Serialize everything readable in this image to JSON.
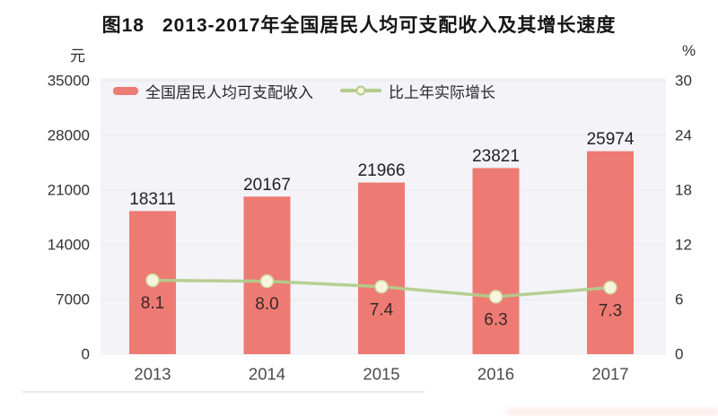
{
  "figure": {
    "title_prefix": "图18",
    "title": "2013-2017年全国居民人均可支配收入及其增长速度"
  },
  "chart_data": {
    "type": "bar",
    "subtype": "bar-line-combo",
    "categories": [
      "2013",
      "2014",
      "2015",
      "2016",
      "2017"
    ],
    "series": [
      {
        "name": "全国居民人均可支配收入",
        "type": "bar",
        "axis": "left",
        "values": [
          18311,
          20167,
          21966,
          23821,
          25974
        ],
        "value_labels": [
          "18311",
          "20167",
          "21966",
          "23821",
          "25974"
        ],
        "color": "#ee7b73"
      },
      {
        "name": "比上年实际增长",
        "type": "line",
        "axis": "right",
        "values": [
          8.1,
          8.0,
          7.4,
          6.3,
          7.3
        ],
        "value_labels": [
          "8.1",
          "8.0",
          "7.4",
          "6.3",
          "7.3"
        ],
        "color": "#b2cc8c",
        "marker_fill": "#f9f5dd"
      }
    ],
    "left_axis": {
      "unit": "元",
      "ticks": [
        0,
        7000,
        14000,
        21000,
        28000,
        35000
      ],
      "min": 0,
      "max": 35000
    },
    "right_axis": {
      "unit": "%",
      "ticks": [
        0,
        6,
        12,
        18,
        24,
        30
      ],
      "min": 0,
      "max": 30
    },
    "grid": true,
    "legend_position": "top-inside"
  },
  "colors": {
    "bar": "#ee7b73",
    "line": "#b2cc8c",
    "marker_fill": "#f9f5dd",
    "marker_stroke": "#ccd6a2",
    "plot_background": "#f3f3f8",
    "gridline": "#e8e8f0",
    "bar_value_label": "#222222",
    "line_value_label": "#36282a",
    "axis_text": "#333333",
    "category_text": "#4a4a4a"
  }
}
